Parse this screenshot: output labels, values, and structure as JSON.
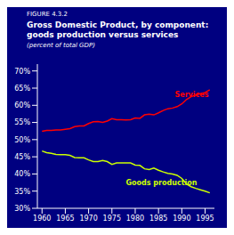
{
  "chart_data": {
    "type": "line",
    "figure_label": "FIGURE 4.3.2",
    "title": "Gross Domestic Product, by component:\ngoods production versus services",
    "subtitle": "(percent of total GDP)",
    "x": [
      1960,
      1961,
      1962,
      1963,
      1964,
      1965,
      1966,
      1967,
      1968,
      1969,
      1970,
      1971,
      1972,
      1973,
      1974,
      1975,
      1976,
      1977,
      1978,
      1979,
      1980,
      1981,
      1982,
      1983,
      1984,
      1985,
      1986,
      1987,
      1988,
      1989,
      1990,
      1991,
      1992,
      1993,
      1994,
      1995,
      1996
    ],
    "series": [
      {
        "name": "Services",
        "color": "#ff0000",
        "values": [
          0.524,
          0.527,
          0.527,
          0.528,
          0.528,
          0.53,
          0.532,
          0.538,
          0.54,
          0.54,
          0.547,
          0.552,
          0.553,
          0.55,
          0.554,
          0.561,
          0.558,
          0.558,
          0.557,
          0.558,
          0.563,
          0.562,
          0.572,
          0.574,
          0.572,
          0.578,
          0.585,
          0.59,
          0.592,
          0.596,
          0.604,
          0.617,
          0.625,
          0.63,
          0.634,
          0.637,
          0.645
        ]
      },
      {
        "name": "Goods production",
        "color": "#ccff00",
        "values": [
          0.467,
          0.462,
          0.46,
          0.457,
          0.456,
          0.456,
          0.454,
          0.448,
          0.447,
          0.447,
          0.441,
          0.436,
          0.436,
          0.439,
          0.436,
          0.428,
          0.432,
          0.432,
          0.432,
          0.432,
          0.426,
          0.425,
          0.415,
          0.413,
          0.417,
          0.411,
          0.406,
          0.402,
          0.4,
          0.396,
          0.387,
          0.371,
          0.363,
          0.358,
          0.354,
          0.35,
          0.345
        ]
      }
    ],
    "xlim": [
      1959,
      1997
    ],
    "ylim": [
      0.3,
      0.72
    ],
    "xticks": [
      1960,
      1965,
      1970,
      1975,
      1980,
      1985,
      1990,
      1995
    ],
    "yticks": [
      {
        "value": 0.3,
        "label": "30%"
      },
      {
        "value": 0.35,
        "label": "35%"
      },
      {
        "value": 0.4,
        "label": "40%"
      },
      {
        "value": 0.45,
        "label": "45%"
      },
      {
        "value": 0.5,
        "label": "50%"
      },
      {
        "value": 0.55,
        "label": "55%"
      },
      {
        "value": 0.6,
        "label": "60%"
      },
      {
        "value": 0.65,
        "label": "65%"
      },
      {
        "value": 0.7,
        "label": "70%"
      }
    ],
    "annotations": [
      {
        "text": "Services",
        "x": 1988.5,
        "y": 0.624
      },
      {
        "text": "Goods production",
        "x": 1978,
        "y": 0.367
      }
    ]
  }
}
